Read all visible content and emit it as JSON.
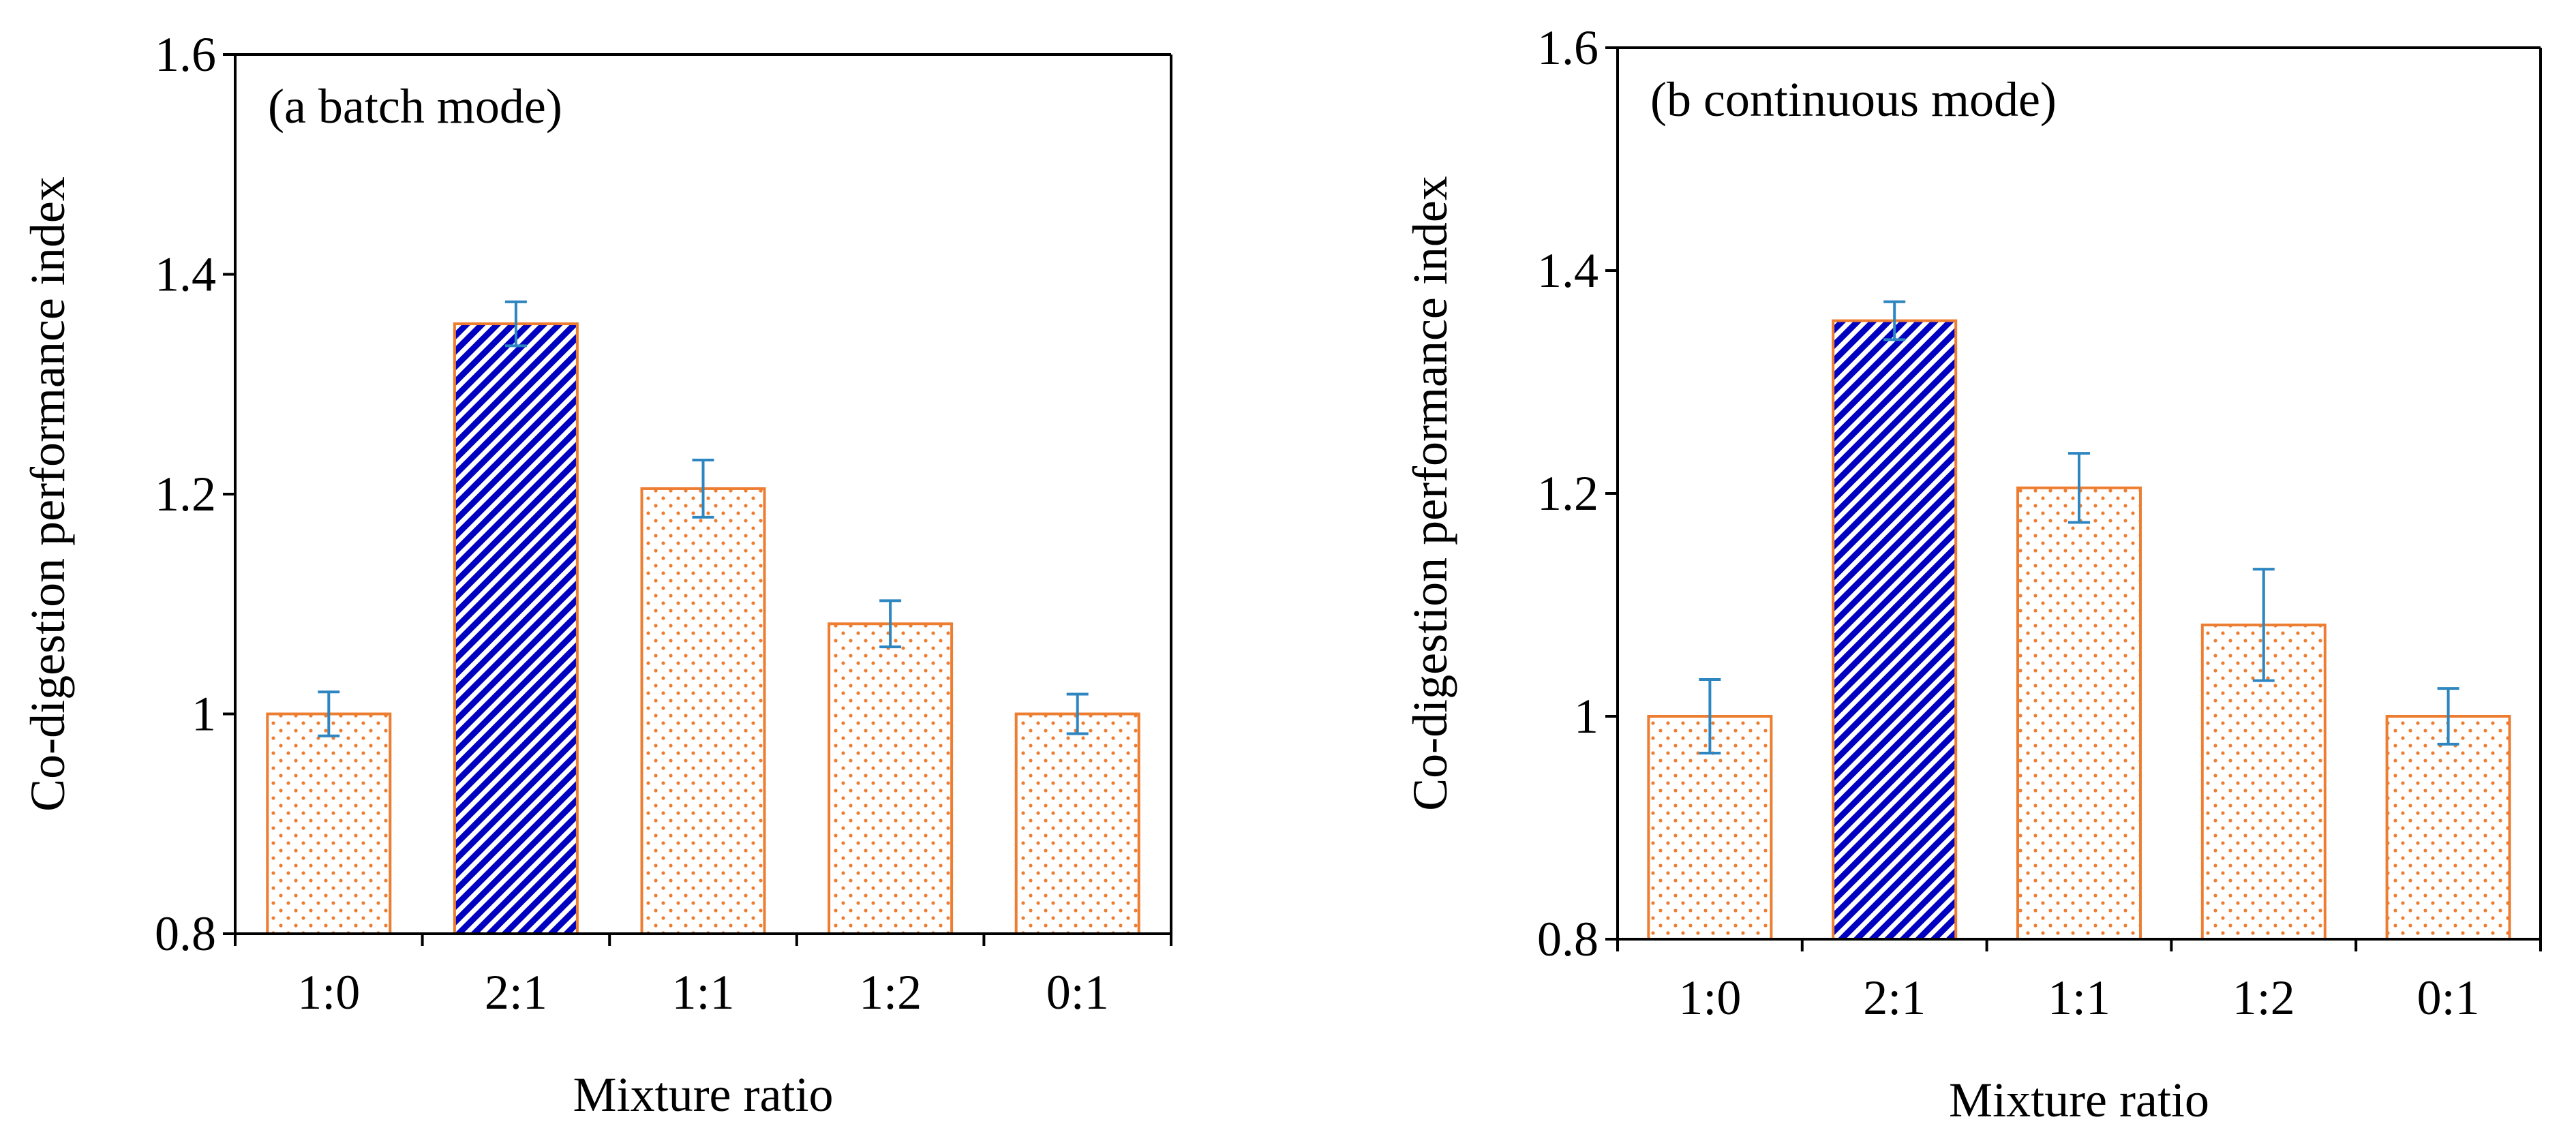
{
  "colors": {
    "bar_edge": "#ED7D31",
    "dot_fill": "#ED7D31",
    "highlight_stripe": "#0000C0",
    "error_bar": "#2E86C1",
    "axis": "#000000"
  },
  "chart_data": [
    {
      "type": "bar",
      "title": "(a batch mode)",
      "xlabel": "Mixture ratio",
      "ylabel": "Co-digestion performance index",
      "categories": [
        "1:0",
        "2:1",
        "1:1",
        "1:2",
        "0:1"
      ],
      "values": [
        1.0,
        1.355,
        1.205,
        1.082,
        1.0
      ],
      "errors": [
        0.02,
        0.02,
        0.026,
        0.021,
        0.018
      ],
      "patterns": [
        "dots",
        "stripes",
        "dots",
        "dots",
        "dots"
      ],
      "ylim": [
        0.8,
        1.6
      ],
      "yticks": [
        0.8,
        1.0,
        1.2,
        1.4,
        1.6
      ],
      "ytick_labels": [
        "0.8",
        "1",
        "1.2",
        "1.4",
        "1.6"
      ],
      "grid": false,
      "legend": "none"
    },
    {
      "type": "bar",
      "title": "(b continuous mode)",
      "xlabel": "Mixture ratio",
      "ylabel": "Co-digestion performance index",
      "categories": [
        "1:0",
        "2:1",
        "1:1",
        "1:2",
        "0:1"
      ],
      "values": [
        1.0,
        1.355,
        1.205,
        1.082,
        1.0
      ],
      "errors": [
        0.033,
        0.017,
        0.031,
        0.05,
        0.025
      ],
      "patterns": [
        "dots",
        "stripes",
        "dots",
        "dots",
        "dots"
      ],
      "ylim": [
        0.8,
        1.6
      ],
      "yticks": [
        0.8,
        1.0,
        1.2,
        1.4,
        1.6
      ],
      "ytick_labels": [
        "0.8",
        "1",
        "1.2",
        "1.4",
        "1.6"
      ],
      "grid": false,
      "legend": "none"
    }
  ]
}
